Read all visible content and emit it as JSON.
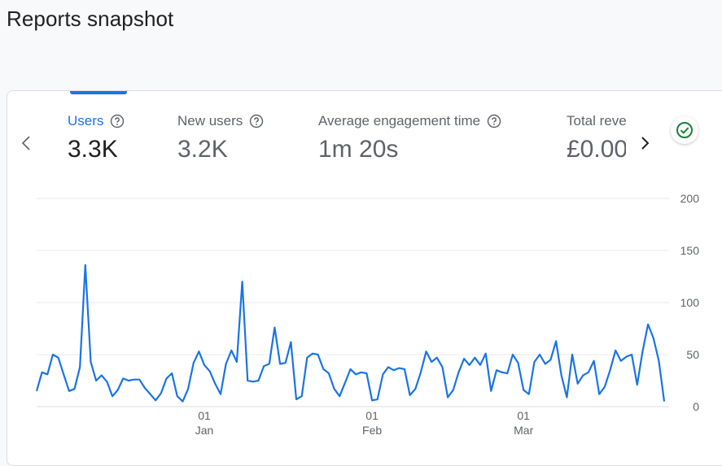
{
  "page": {
    "title": "Reports snapshot"
  },
  "metrics": [
    {
      "label": "Users",
      "value": "3.3K",
      "active": true
    },
    {
      "label": "New users",
      "value": "3.2K",
      "active": false
    },
    {
      "label": "Average engagement time",
      "value": "1m 20s",
      "active": false
    },
    {
      "label": "Total revenue",
      "value": "£0.00",
      "active": false
    }
  ],
  "colors": {
    "accent": "#1a73e8",
    "line": "#1a73e8",
    "check": "#188038"
  },
  "icons": {
    "prev": "chevron-left-icon",
    "next": "chevron-right-icon",
    "help": "help-circle-icon",
    "status": "check-circle-icon"
  },
  "chart_data": {
    "type": "line",
    "series": [
      {
        "values": [
          15,
          33,
          31,
          50,
          47,
          31,
          15,
          17,
          38,
          136,
          43,
          25,
          30,
          24,
          10,
          16,
          27,
          25,
          26,
          26,
          18,
          12,
          6,
          13,
          27,
          32,
          10,
          5,
          17,
          42,
          53,
          40,
          34,
          22,
          12,
          41,
          54,
          43,
          120,
          25,
          24,
          25,
          39,
          41,
          76,
          41,
          42,
          62,
          7,
          10,
          47,
          51,
          50,
          36,
          32,
          17,
          10,
          23,
          36,
          31,
          33,
          32,
          6,
          7,
          31,
          38,
          35,
          37,
          36,
          11,
          17,
          33,
          53,
          43,
          47,
          38,
          9,
          16,
          33,
          46,
          40,
          47,
          40,
          51,
          15,
          35,
          33,
          32,
          50,
          42,
          16,
          12,
          43,
          50,
          41,
          45,
          63,
          30,
          9,
          50,
          22,
          30,
          33,
          44,
          12,
          19,
          35,
          54,
          44,
          48,
          50,
          21,
          53,
          79,
          66,
          44,
          5
        ]
      }
    ],
    "x_tick_labels": [
      {
        "day": "01",
        "month": "Jan"
      },
      {
        "day": "01",
        "month": "Feb"
      },
      {
        "day": "01",
        "month": "Mar"
      }
    ],
    "y_ticks": [
      0,
      50,
      100,
      150,
      200
    ],
    "ylim": [
      0,
      200
    ],
    "grid": true,
    "y_axis_side": "right"
  }
}
